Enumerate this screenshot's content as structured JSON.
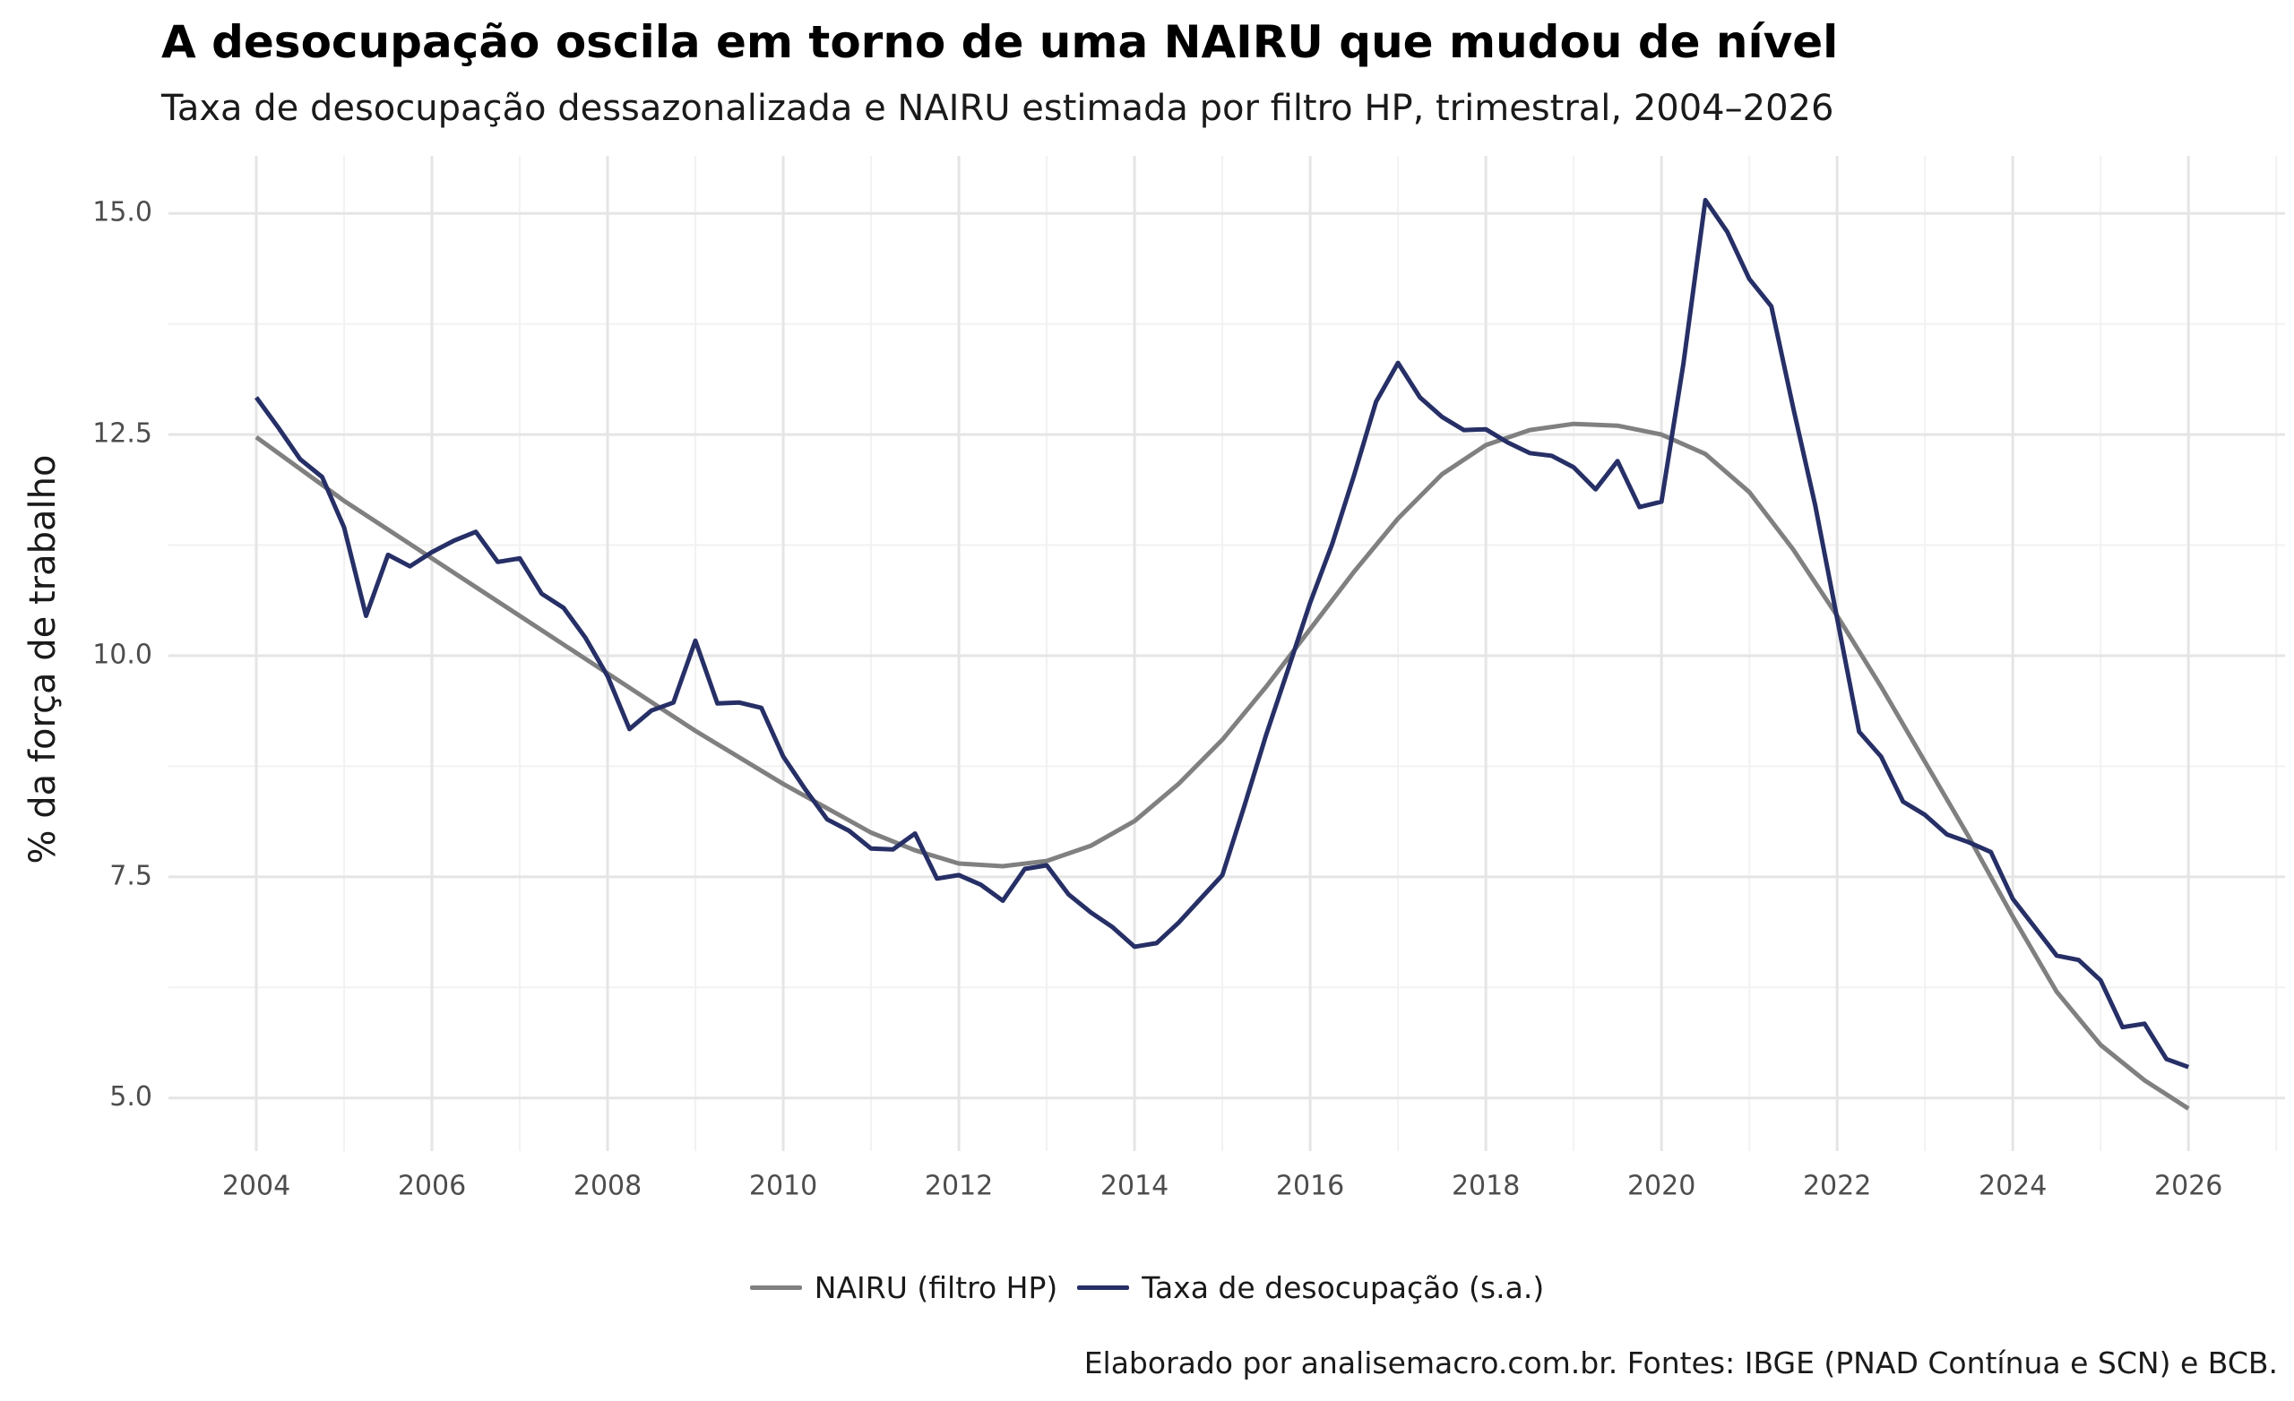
{
  "title": "A desocupação oscila em torno de uma NAIRU que mudou de nível",
  "subtitle": "Taxa de desocupação dessazonalizada e NAIRU estimada por filtro HP, trimestral, 2004–2026",
  "caption": "Elaborado por analisemacro.com.br. Fontes: IBGE (PNAD Contínua e SCN) e BCB.",
  "chart_data": {
    "type": "line",
    "ylabel": "% da força de trabalho",
    "xlabel": "",
    "xlim": [
      2003.0,
      2027.1
    ],
    "ylim": [
      4.4,
      15.65
    ],
    "x_ticks": [
      2004,
      2006,
      2008,
      2010,
      2012,
      2014,
      2016,
      2018,
      2020,
      2022,
      2024,
      2026
    ],
    "y_ticks": [
      5.0,
      7.5,
      10.0,
      12.5,
      15.0
    ],
    "x_tick_labels": [
      "2004",
      "2006",
      "2008",
      "2010",
      "2012",
      "2014",
      "2016",
      "2018",
      "2020",
      "2022",
      "2024",
      "2026"
    ],
    "y_tick_labels": [
      "5.0",
      "7.5",
      "10.0",
      "12.5",
      "15.0"
    ],
    "grid": true,
    "legend_position": "bottom",
    "colors": {
      "nairu": "#808080",
      "rate": "#262f66"
    },
    "series": [
      {
        "name": "NAIRU (filtro HP)",
        "x": [
          2004.0,
          2005.0,
          2006.0,
          2007.0,
          2008.0,
          2009.0,
          2010.0,
          2011.0,
          2011.5,
          2012.0,
          2012.5,
          2013.0,
          2013.5,
          2014.0,
          2014.5,
          2015.0,
          2015.5,
          2016.0,
          2016.5,
          2017.0,
          2017.5,
          2018.0,
          2018.5,
          2019.0,
          2019.5,
          2020.0,
          2020.5,
          2021.0,
          2021.5,
          2022.0,
          2022.5,
          2023.0,
          2023.5,
          2024.0,
          2024.5,
          2025.0,
          2025.5,
          2026.0
        ],
        "values": [
          12.47,
          11.75,
          11.1,
          10.45,
          9.8,
          9.15,
          8.55,
          8.0,
          7.8,
          7.65,
          7.62,
          7.68,
          7.85,
          8.13,
          8.55,
          9.05,
          9.65,
          10.3,
          10.95,
          11.55,
          12.05,
          12.38,
          12.55,
          12.62,
          12.6,
          12.5,
          12.28,
          11.85,
          11.2,
          10.45,
          9.65,
          8.8,
          7.95,
          7.05,
          6.2,
          5.6,
          5.2,
          4.88
        ]
      },
      {
        "name": "Taxa de desocupação (s.a.)",
        "x": [
          2004.0,
          2004.25,
          2004.5,
          2004.75,
          2005.0,
          2005.25,
          2005.5,
          2005.75,
          2006.0,
          2006.25,
          2006.5,
          2006.75,
          2007.0,
          2007.25,
          2007.5,
          2007.75,
          2008.0,
          2008.25,
          2008.5,
          2008.75,
          2009.0,
          2009.25,
          2009.5,
          2009.75,
          2010.0,
          2010.25,
          2010.5,
          2010.75,
          2011.0,
          2011.25,
          2011.5,
          2011.75,
          2012.0,
          2012.25,
          2012.5,
          2012.75,
          2013.0,
          2013.25,
          2013.5,
          2013.75,
          2014.0,
          2014.25,
          2014.5,
          2014.75,
          2015.0,
          2015.25,
          2015.5,
          2015.75,
          2016.0,
          2016.25,
          2016.5,
          2016.75,
          2017.0,
          2017.25,
          2017.5,
          2017.75,
          2018.0,
          2018.25,
          2018.5,
          2018.75,
          2019.0,
          2019.25,
          2019.5,
          2019.75,
          2020.0,
          2020.25,
          2020.5,
          2020.75,
          2021.0,
          2021.25,
          2021.5,
          2021.75,
          2022.0,
          2022.25,
          2022.5,
          2022.75,
          2023.0,
          2023.25,
          2023.5,
          2023.75,
          2024.0,
          2024.25,
          2024.5,
          2024.75,
          2025.0,
          2025.25,
          2025.5,
          2025.75,
          2026.0
        ],
        "values": [
          12.92,
          12.58,
          12.22,
          12.02,
          11.45,
          10.45,
          11.14,
          11.01,
          11.17,
          11.3,
          11.4,
          11.06,
          11.1,
          10.7,
          10.54,
          10.2,
          9.77,
          9.17,
          9.38,
          9.47,
          10.17,
          9.46,
          9.47,
          9.41,
          8.86,
          8.49,
          8.15,
          8.02,
          7.82,
          7.81,
          7.99,
          7.48,
          7.52,
          7.41,
          7.23,
          7.59,
          7.63,
          7.3,
          7.1,
          6.93,
          6.71,
          6.75,
          6.98,
          7.25,
          7.52,
          8.3,
          9.11,
          9.85,
          10.6,
          11.26,
          12.04,
          12.87,
          13.31,
          12.92,
          12.7,
          12.55,
          12.56,
          12.41,
          12.29,
          12.26,
          12.13,
          11.88,
          12.2,
          11.68,
          11.74,
          13.3,
          15.15,
          14.79,
          14.26,
          13.95,
          12.8,
          11.7,
          10.42,
          9.14,
          8.86,
          8.35,
          8.2,
          7.98,
          7.89,
          7.78,
          7.25,
          6.93,
          6.61,
          6.56,
          6.33,
          5.8,
          5.84,
          5.44,
          5.35
        ]
      }
    ]
  }
}
